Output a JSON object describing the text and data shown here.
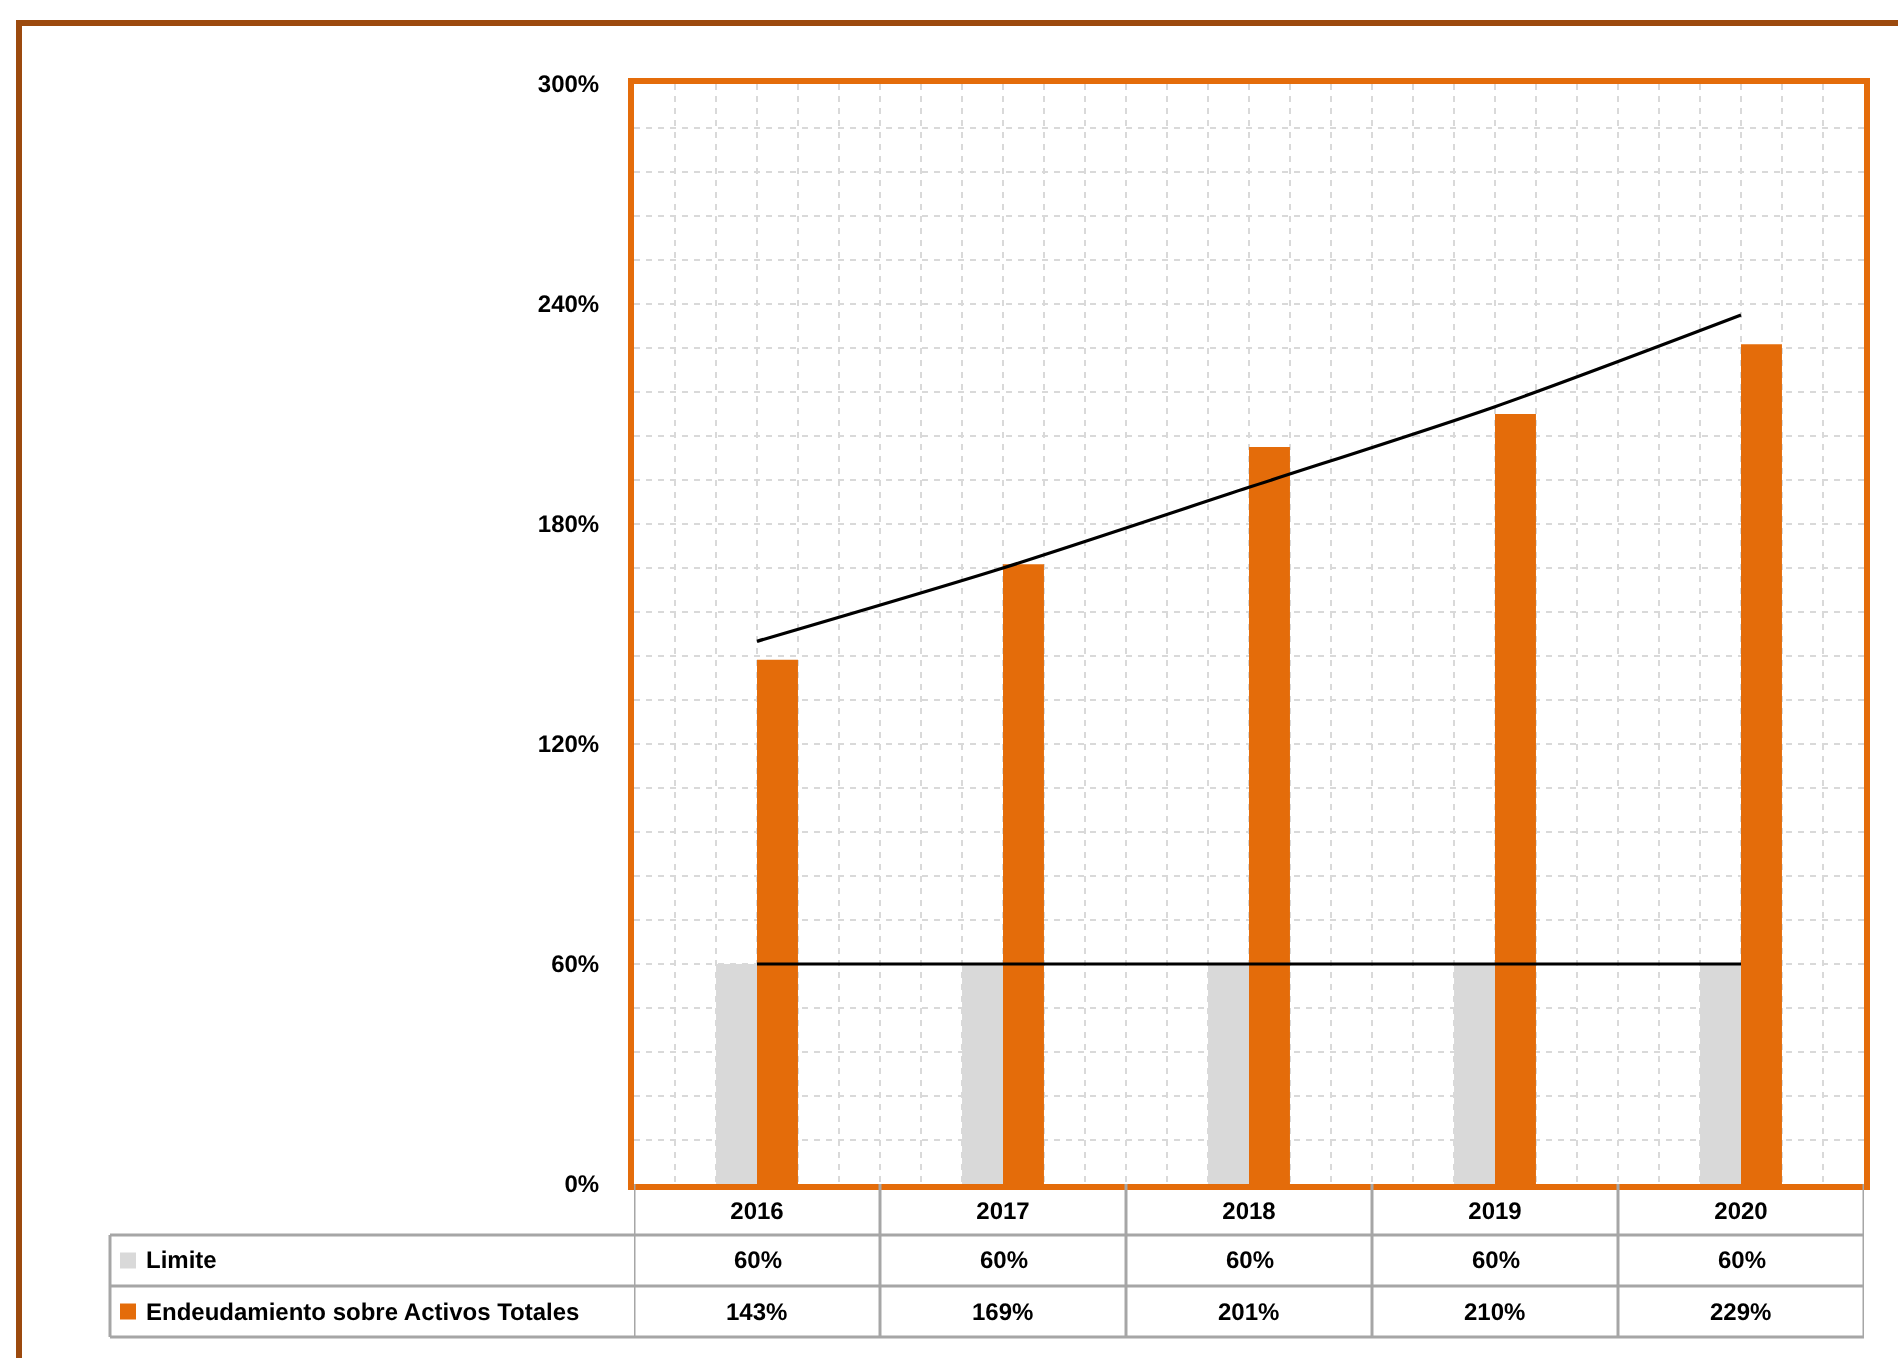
{
  "chart_data": {
    "type": "bar",
    "categories": [
      "2016",
      "2017",
      "2018",
      "2019",
      "2020"
    ],
    "series": [
      {
        "name": "Limite",
        "color": "#d9d9d9",
        "values": [
          60,
          60,
          60,
          60,
          60
        ],
        "value_labels": [
          "60%",
          "60%",
          "60%",
          "60%",
          "60%"
        ]
      },
      {
        "name": "Endeudamiento sobre Activos Totales",
        "color": "#e46c0a",
        "values": [
          143,
          169,
          201,
          210,
          229
        ],
        "value_labels": [
          "143%",
          "169%",
          "201%",
          "210%",
          "229%"
        ]
      },
      {
        "type": "line",
        "color": "#000000",
        "values": [
          60,
          60,
          60,
          60,
          60
        ]
      },
      {
        "type": "line",
        "color": "#000000",
        "values": [
          148,
          168,
          190,
          212,
          237
        ]
      }
    ],
    "ylim": [
      0,
      300
    ],
    "yticks": [
      {
        "value": 0,
        "label": "0%"
      },
      {
        "value": 60,
        "label": "60%"
      },
      {
        "value": 120,
        "label": "120%"
      },
      {
        "value": 180,
        "label": "180%"
      },
      {
        "value": 240,
        "label": "240%"
      },
      {
        "value": 300,
        "label": "300%"
      }
    ],
    "grid": true,
    "legend": "bottom",
    "marker": "none",
    "line_style": "solid"
  }
}
